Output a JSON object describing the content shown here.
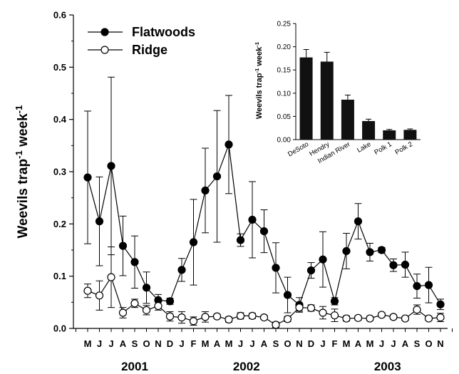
{
  "chart_data": [
    {
      "type": "line",
      "ylabel_base": "Weevils trap",
      "ylabel_sup1": "-1",
      "ylabel_mid": " week",
      "ylabel_sup2": "-1",
      "ylim": [
        0,
        0.6
      ],
      "yticks": [
        "0.0",
        "0.1",
        "0.2",
        "0.3",
        "0.4",
        "0.5",
        "0.6"
      ],
      "categories": [
        "M",
        "J",
        "J",
        "A",
        "S",
        "O",
        "N",
        "D",
        "J",
        "F",
        "M",
        "A",
        "M",
        "J",
        "J",
        "A",
        "S",
        "O",
        "N",
        "D",
        "J",
        "F",
        "M",
        "A",
        "M",
        "J",
        "J",
        "A",
        "S",
        "O",
        "N"
      ],
      "year_labels": [
        {
          "label": "2001",
          "center_index": 4
        },
        {
          "label": "2002",
          "center_index": 13.5
        },
        {
          "label": "2003",
          "center_index": 25.5
        }
      ],
      "legend_position": "top-left",
      "series": [
        {
          "name": "Flatwoods",
          "marker": "filled-circle",
          "values": [
            0.289,
            0.205,
            0.311,
            0.158,
            0.127,
            0.078,
            0.054,
            0.052,
            0.112,
            0.165,
            0.264,
            0.291,
            0.352,
            0.169,
            0.208,
            0.186,
            0.116,
            0.064,
            0.045,
            0.111,
            0.132,
            0.052,
            0.148,
            0.205,
            0.146,
            0.15,
            0.121,
            0.122,
            0.081,
            0.083,
            0.046
          ],
          "errors": [
            0.127,
            0.085,
            0.17,
            0.057,
            0.05,
            0.03,
            0.011,
            0.006,
            0.022,
            0.082,
            0.081,
            0.126,
            0.094,
            0.012,
            0.073,
            0.041,
            0.048,
            0.034,
            0.014,
            0.015,
            0.053,
            0.007,
            0.034,
            0.034,
            0.017,
            0.005,
            0.012,
            0.024,
            0.023,
            0.034,
            0.01
          ]
        },
        {
          "name": "Ridge",
          "marker": "open-circle",
          "values": [
            0.072,
            0.063,
            0.098,
            0.03,
            0.048,
            0.035,
            0.043,
            0.023,
            0.021,
            0.014,
            0.022,
            0.023,
            0.017,
            0.024,
            0.024,
            0.021,
            0.007,
            0.018,
            0.04,
            0.039,
            0.03,
            0.025,
            0.019,
            0.02,
            0.019,
            0.026,
            0.022,
            0.019,
            0.036,
            0.019,
            0.021
          ],
          "errors": [
            0.013,
            0.028,
            0.058,
            0.01,
            0.008,
            0.009,
            0.008,
            0.009,
            0.011,
            0.008,
            0.01,
            0.004,
            0.005,
            0.006,
            0.005,
            0.004,
            0.005,
            0.005,
            0.007,
            0.006,
            0.012,
            0.012,
            0.005,
            0.004,
            0.004,
            0.004,
            0.004,
            0.004,
            0.009,
            0.004,
            0.008
          ]
        }
      ]
    },
    {
      "type": "bar",
      "ylabel_base": "Weevils trap",
      "ylabel_sup1": "-1",
      "ylabel_mid": " week",
      "ylabel_sup2": "-1",
      "ylim": [
        0,
        0.25
      ],
      "yticks": [
        "0.00",
        "0.05",
        "0.10",
        "0.15",
        "0.20",
        "0.25"
      ],
      "categories": [
        "DeSoto",
        "Hendry",
        "Indian River",
        "Lake",
        "Polk 1",
        "Polk 2"
      ],
      "values": [
        0.177,
        0.168,
        0.086,
        0.04,
        0.02,
        0.021
      ],
      "errors": [
        0.017,
        0.02,
        0.01,
        0.004,
        0.002,
        0.002
      ],
      "bar_color": "#111111"
    }
  ]
}
